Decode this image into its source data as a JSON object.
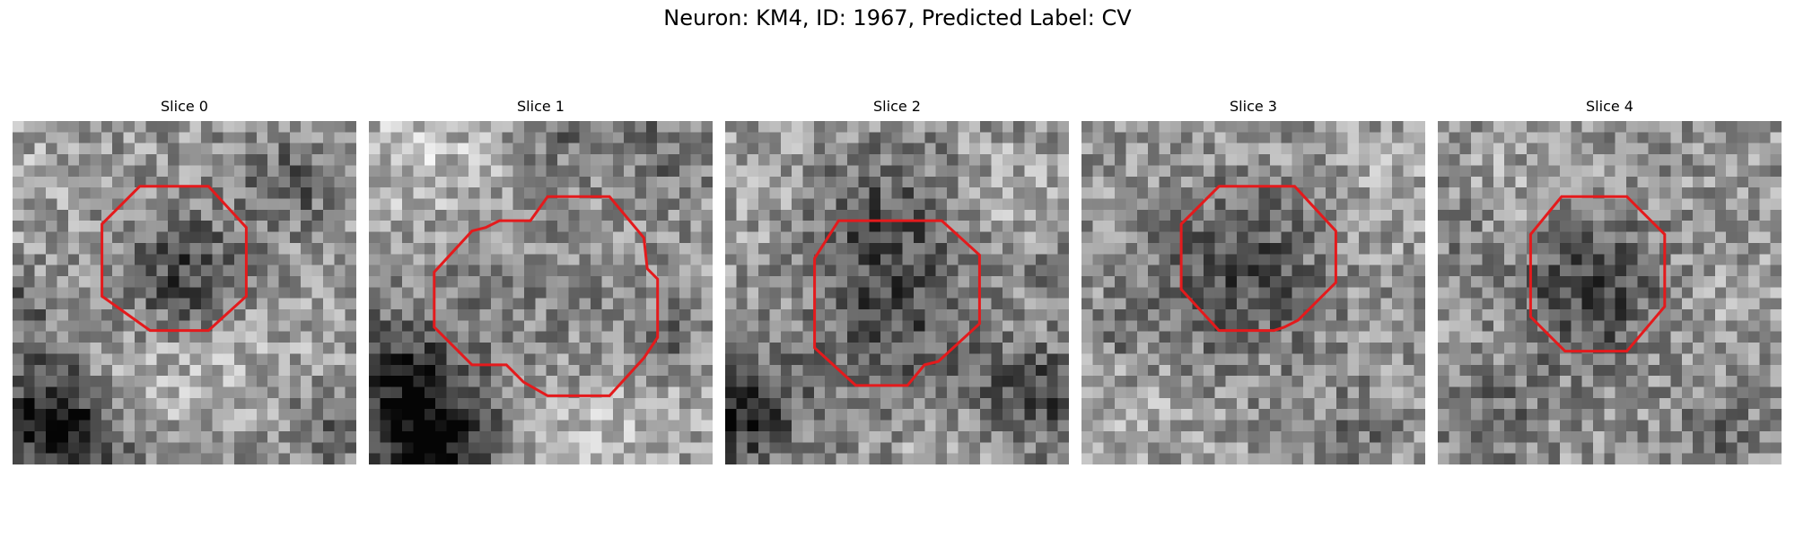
{
  "figure": {
    "title": "Neuron: KM4, ID: 1967, Predicted Label: CV"
  },
  "colors": {
    "contour": "#e41a1c",
    "background": "#ffffff"
  },
  "panels": [
    {
      "title": "Slice 0"
    },
    {
      "title": "Slice 1"
    },
    {
      "title": "Slice 2"
    },
    {
      "title": "Slice 3"
    },
    {
      "title": "Slice 4"
    }
  ]
}
